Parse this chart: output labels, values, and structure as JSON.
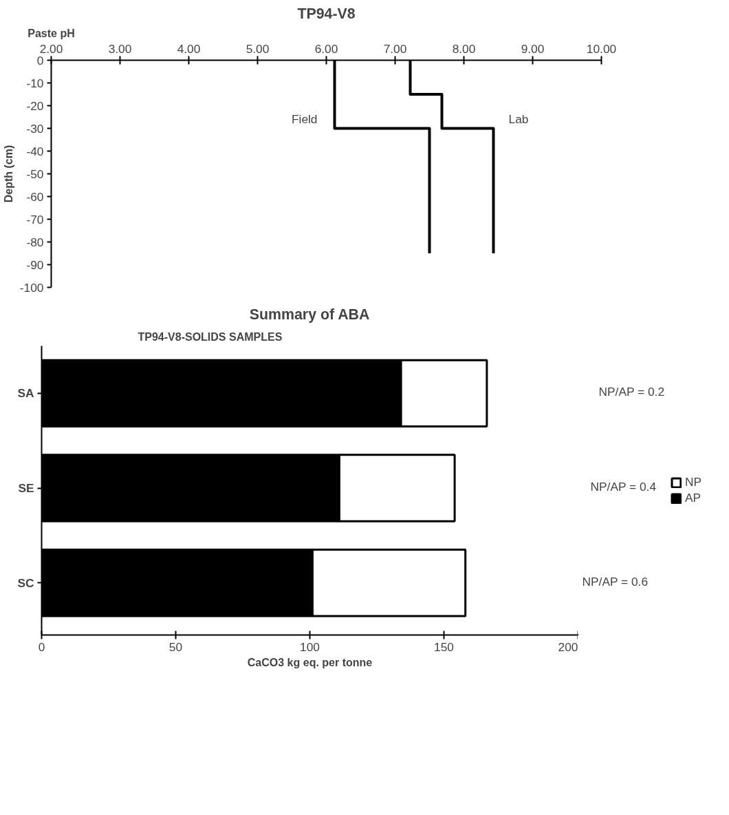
{
  "chart_data": [
    {
      "type": "line",
      "title": "TP94-V8",
      "xlabel": "Paste pH",
      "ylabel": "Depth (cm)",
      "legend": false,
      "grid": false,
      "marker": "none",
      "line_style": "solid",
      "xlim": [
        2,
        10
      ],
      "xticks": [
        {
          "value": 2,
          "label": "2.00"
        },
        {
          "value": 3,
          "label": "3.00"
        },
        {
          "value": 4,
          "label": "4.00"
        },
        {
          "value": 5,
          "label": "5.00"
        },
        {
          "value": 6,
          "label": "6.00"
        },
        {
          "value": 7,
          "label": "7.00"
        },
        {
          "value": 8,
          "label": "8.00"
        },
        {
          "value": 9,
          "label": "9.00"
        },
        {
          "value": 10,
          "label": "10.00"
        }
      ],
      "ylim": [
        -100,
        0
      ],
      "yticks": [
        0,
        -10,
        -20,
        -30,
        -40,
        -50,
        -60,
        -70,
        -80,
        -90,
        -100
      ],
      "series": [
        {
          "name": "Field",
          "color": "#000000",
          "x": [
            6.12,
            6.12,
            7.5,
            7.5
          ],
          "values": [
            0,
            -30,
            -30,
            -85
          ]
        },
        {
          "name": "Lab",
          "color": "#000000",
          "x": [
            7.22,
            7.22,
            7.68,
            7.68,
            8.43,
            8.43
          ],
          "values": [
            0,
            -15,
            -15,
            -30,
            -30,
            -85
          ]
        }
      ]
    },
    {
      "type": "bar",
      "orientation": "horizontal",
      "stacked": true,
      "title": "Summary of ABA",
      "subtitle": "TP94-V8-SOLIDS SAMPLES",
      "xlabel": "CaCO3 kg eq. per tonne",
      "legend": "right",
      "grid": false,
      "categories": [
        "SA",
        "SE",
        "SC"
      ],
      "xlim": [
        0,
        200
      ],
      "xticks": [
        0,
        50,
        100,
        150,
        200
      ],
      "series": [
        {
          "name": "AP",
          "color": "#000000",
          "values": [
            134,
            111,
            101
          ]
        },
        {
          "name": "NP",
          "color": "#ffffff",
          "values": [
            32,
            43,
            57
          ]
        }
      ],
      "annotations": [
        "NP/AP = 0.2",
        "NP/AP = 0.4",
        "NP/AP = 0.6"
      ]
    }
  ]
}
